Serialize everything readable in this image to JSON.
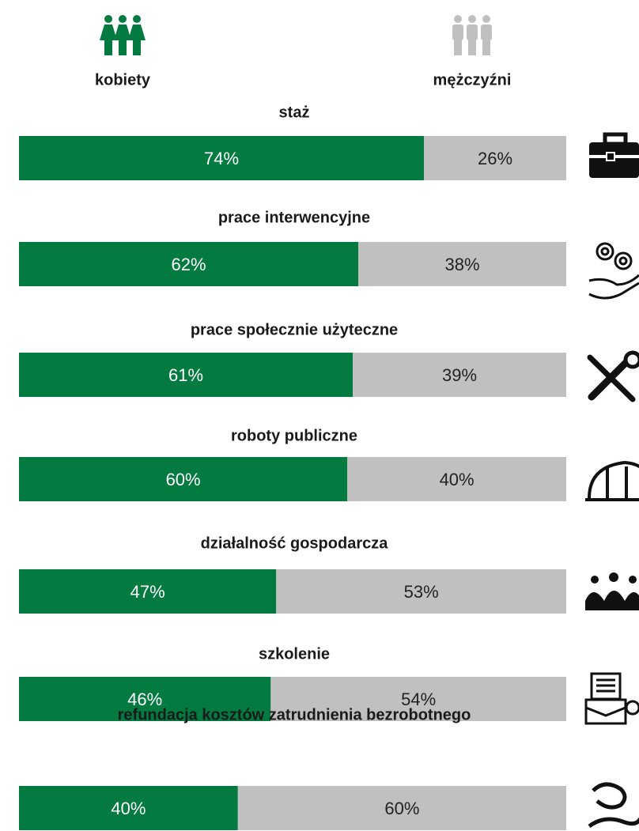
{
  "chart_data": {
    "type": "bar",
    "stacked": true,
    "orientation": "horizontal",
    "categories": [
      "staż",
      "prace interwencyjne",
      "prace społecznie użyteczne",
      "roboty publiczne",
      "działalność gospodarcza",
      "szkolenie",
      "refundacja kosztów zatrudnienia bezrobotnego"
    ],
    "series": [
      {
        "name": "kobiety",
        "color": "#037b40",
        "values": [
          74,
          62,
          61,
          60,
          47,
          46,
          40
        ],
        "value_labels": [
          "74%",
          "62%",
          "61%",
          "60%",
          "47%",
          "46%",
          "40%"
        ]
      },
      {
        "name": "mężczyźni",
        "color": "#c0c0c0",
        "values": [
          26,
          38,
          39,
          40,
          53,
          54,
          60
        ],
        "value_labels": [
          "26%",
          "38%",
          "39%",
          "40%",
          "53%",
          "54%",
          "60%"
        ]
      }
    ],
    "xlim": [
      0,
      100
    ]
  }
}
